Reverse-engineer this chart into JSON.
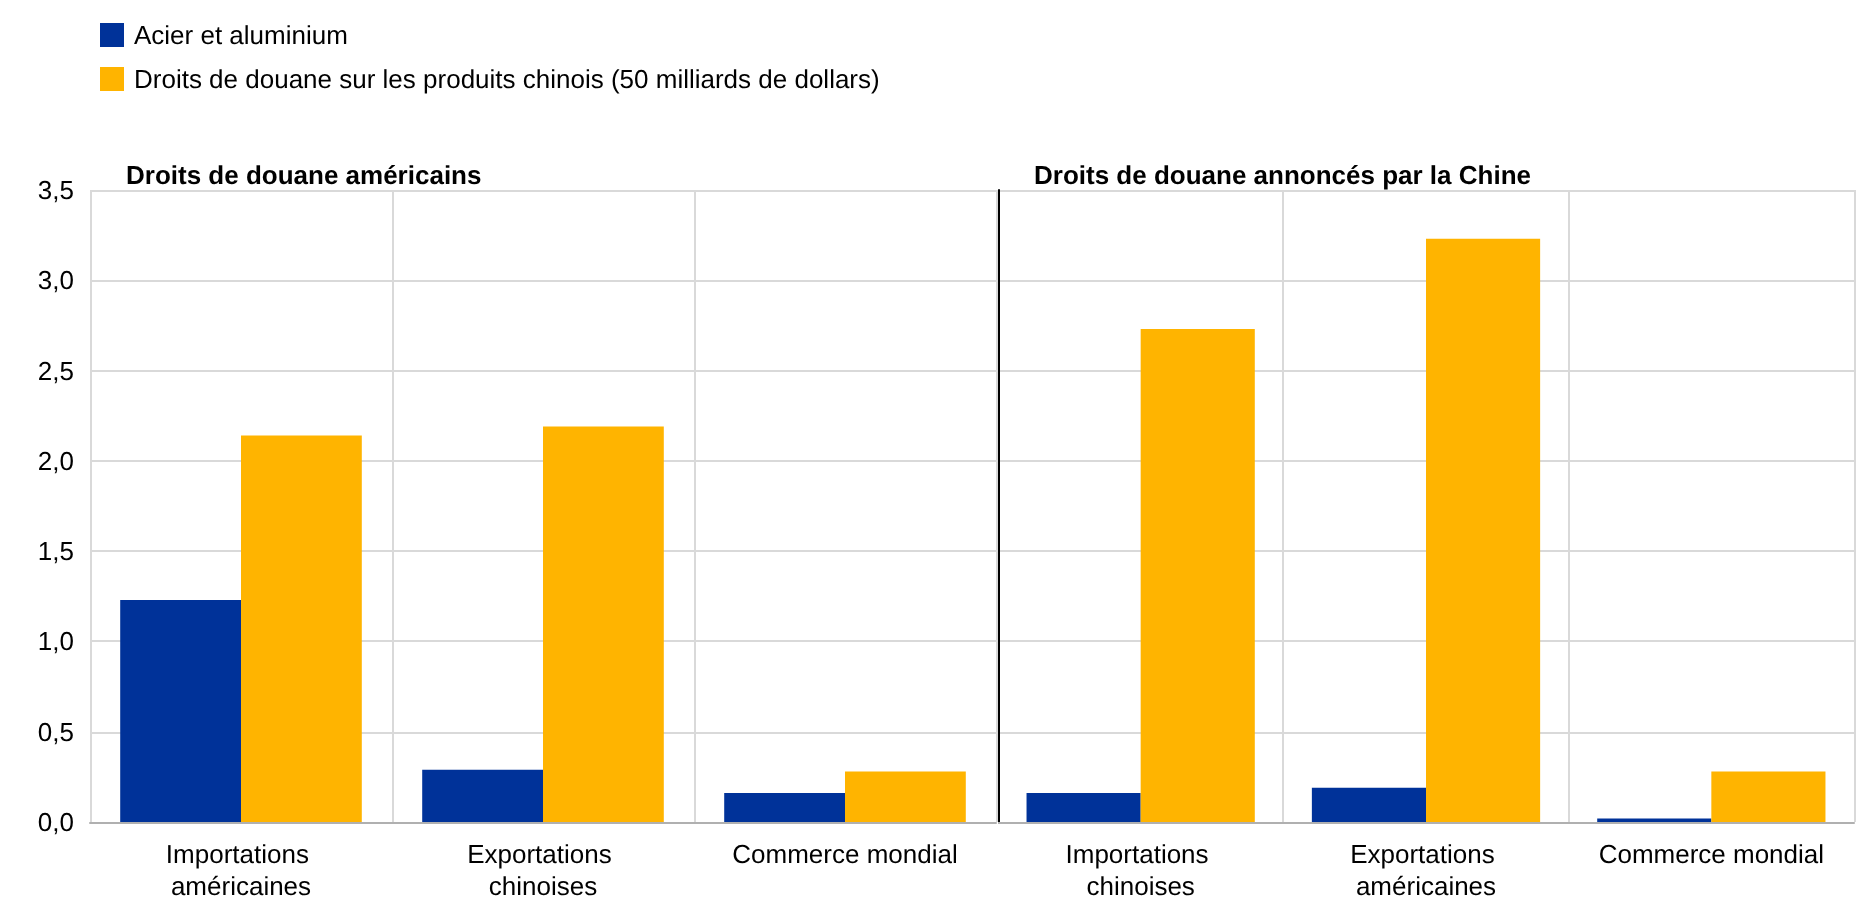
{
  "chart_data": [
    {
      "type": "bar",
      "title": "Droits de douane américains",
      "categories": [
        "Importations américaines",
        "Exportations chinoises",
        "Commerce mondial"
      ],
      "series": [
        {
          "name": "Acier et aluminium",
          "color": "#003299",
          "values": [
            1.23,
            0.29,
            0.16
          ]
        },
        {
          "name": "Droits de douane sur les produits chinois (50 milliards de dollars)",
          "color": "#ffb400",
          "values": [
            2.14,
            2.19,
            0.28
          ]
        }
      ],
      "ylim": [
        0,
        3.5
      ],
      "yticks": [
        {
          "value": 0,
          "label": "0,0"
        },
        {
          "value": 0.5,
          "label": "0,5"
        },
        {
          "value": 1,
          "label": "1,0"
        },
        {
          "value": 1.5,
          "label": "1,5"
        },
        {
          "value": 2,
          "label": "2,0"
        },
        {
          "value": 2.5,
          "label": "2,5"
        },
        {
          "value": 3,
          "label": "3,0"
        },
        {
          "value": 3.5,
          "label": "3,5"
        }
      ],
      "grid": true,
      "legend": "top left"
    },
    {
      "type": "bar",
      "title": "Droits de douane annoncés par la Chine",
      "categories": [
        "Importations chinoises",
        "Exportations américaines",
        "Commerce mondial"
      ],
      "series": [
        {
          "color": "#003299",
          "values": [
            0.16,
            0.19,
            0.02
          ]
        },
        {
          "color": "#ffb400",
          "values": [
            2.73,
            3.23,
            0.28
          ]
        }
      ],
      "ylim": [
        0,
        3.5
      ],
      "yticks": [
        {
          "value": 0,
          "label": null
        },
        {
          "value": 0.5,
          "label": null
        },
        {
          "value": 1,
          "label": null
        },
        {
          "value": 1.5,
          "label": null
        },
        {
          "value": 2,
          "label": null
        },
        {
          "value": 2.5,
          "label": null
        },
        {
          "value": 3,
          "label": null
        },
        {
          "value": 3.5,
          "label": null
        }
      ],
      "grid": true,
      "tick_labels": "x",
      "legend": false
    }
  ]
}
